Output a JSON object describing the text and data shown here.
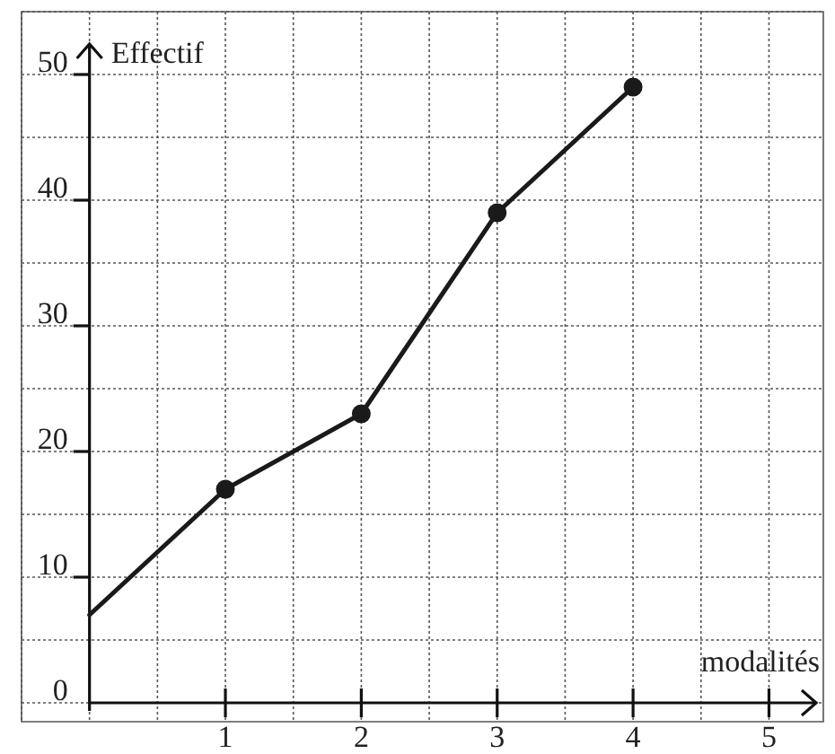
{
  "chart_data": {
    "type": "line",
    "xlabel": "modalités",
    "ylabel": "Effectif",
    "x": [
      0,
      1,
      2,
      3,
      4
    ],
    "series": [
      {
        "color": "#1a1a1a",
        "values": [
          7,
          17,
          23,
          39,
          49
        ]
      }
    ],
    "xlim": [
      -0.5,
      5.4
    ],
    "ylim": [
      -1.5,
      55
    ],
    "xticks": [
      1,
      2,
      3,
      4,
      5
    ],
    "yticks": [
      0,
      10,
      20,
      30,
      40,
      50
    ],
    "grid": true,
    "legend": false,
    "marker": "circle",
    "line_style": "solid"
  }
}
